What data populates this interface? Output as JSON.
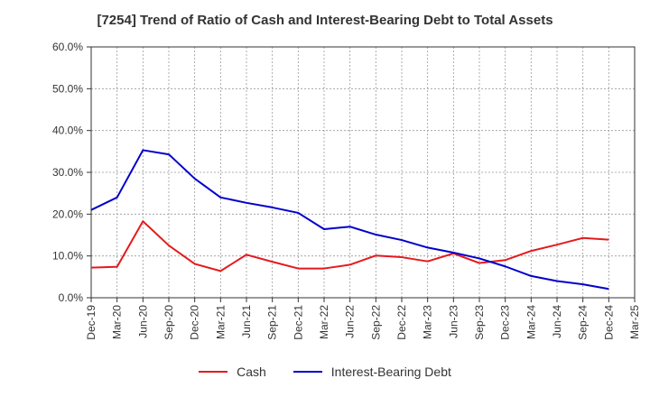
{
  "chart_data": {
    "type": "line",
    "title": "[7254]  Trend of Ratio of Cash and Interest-Bearing Debt to Total Assets",
    "xlabel": "",
    "ylabel": "",
    "ylim": [
      0,
      60
    ],
    "y_ticks": [
      "0.0%",
      "10.0%",
      "20.0%",
      "30.0%",
      "40.0%",
      "50.0%",
      "60.0%"
    ],
    "grid": true,
    "legend_position": "bottom",
    "categories": [
      "Dec-19",
      "Mar-20",
      "Jun-20",
      "Sep-20",
      "Dec-20",
      "Mar-21",
      "Jun-21",
      "Sep-21",
      "Dec-21",
      "Mar-22",
      "Jun-22",
      "Sep-22",
      "Dec-22",
      "Mar-23",
      "Jun-23",
      "Sep-23",
      "Dec-23",
      "Mar-24",
      "Jun-24",
      "Sep-24",
      "Dec-24",
      "Mar-25"
    ],
    "series": [
      {
        "name": "Cash",
        "color": "#e41a1c",
        "values": [
          7.2,
          7.4,
          18.3,
          12.5,
          8.1,
          6.4,
          10.3,
          8.6,
          7.0,
          7.0,
          7.9,
          10.1,
          9.7,
          8.7,
          10.6,
          8.3,
          9.0,
          11.2,
          12.7,
          14.3,
          13.9,
          null
        ]
      },
      {
        "name": "Interest-Bearing Debt",
        "color": "#0000cc",
        "values": [
          21.0,
          24.0,
          35.3,
          34.3,
          28.5,
          24.0,
          22.7,
          21.6,
          20.3,
          16.4,
          17.0,
          15.1,
          13.8,
          12.0,
          10.8,
          9.4,
          7.5,
          5.2,
          4.0,
          3.2,
          2.1,
          null
        ]
      }
    ]
  }
}
